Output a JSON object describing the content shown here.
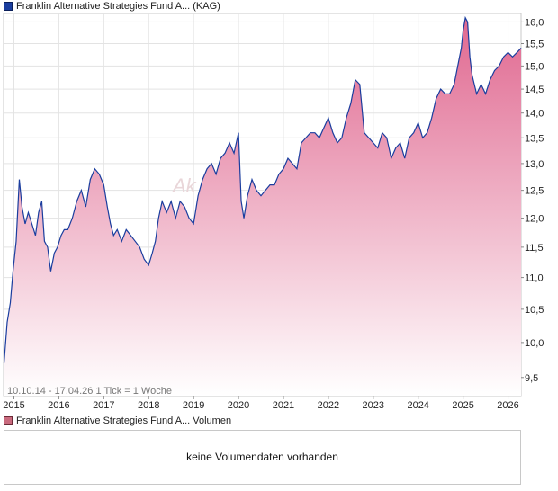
{
  "price_legend": {
    "name": "Franklin Alternative Strategies Fund A... (KAG)",
    "color": "#1a3d9e"
  },
  "volume_legend": {
    "name": "Franklin Alternative Strategies Fund A... Volumen",
    "color": "#c96a7e"
  },
  "range_label": "10.10.14 - 17.04.26   1 Tick = 1 Woche",
  "watermark": "Ak",
  "volume_message": "keine Volumendaten vorhanden",
  "chart_data": {
    "type": "area",
    "title": "",
    "xlabel": "",
    "ylabel": "",
    "x_ticks": [
      "2015",
      "2016",
      "2017",
      "2018",
      "2019",
      "2020",
      "2021",
      "2022",
      "2023",
      "2024",
      "2025",
      "2026"
    ],
    "y_ticks": [
      9.5,
      10.0,
      10.5,
      11.0,
      11.5,
      12.0,
      12.5,
      13.0,
      13.5,
      14.0,
      14.5,
      15.0,
      15.5,
      16.0
    ],
    "y_tick_labels": [
      "9,5",
      "10,0",
      "10,5",
      "11,0",
      "11,5",
      "12,0",
      "12,5",
      "13,0",
      "13,5",
      "14,0",
      "14,5",
      "15,0",
      "15,5",
      "16,0"
    ],
    "xlim": [
      2014.77,
      2026.29
    ],
    "ylim": [
      9.25,
      16.2
    ],
    "y_scale": "log",
    "grid": true,
    "line_color": "#1a3d9e",
    "fill_top_color": "#e06890",
    "fill_bottom_color": "#ffffff",
    "series": [
      {
        "x": [
          2014.78,
          2014.85,
          2014.92,
          2014.98,
          2015.05,
          2015.12,
          2015.18,
          2015.25,
          2015.32,
          2015.4,
          2015.48,
          2015.55,
          2015.62,
          2015.68,
          2015.75,
          2015.82,
          2015.9,
          2015.97,
          2016.05,
          2016.12,
          2016.2,
          2016.3,
          2016.4,
          2016.5,
          2016.6,
          2016.7,
          2016.8,
          2016.9,
          2017.0,
          2017.08,
          2017.15,
          2017.22,
          2017.3,
          2017.4,
          2017.5,
          2017.6,
          2017.7,
          2017.8,
          2017.9,
          2018.0,
          2018.08,
          2018.15,
          2018.22,
          2018.3,
          2018.4,
          2018.5,
          2018.6,
          2018.7,
          2018.8,
          2018.9,
          2019.0,
          2019.1,
          2019.2,
          2019.3,
          2019.4,
          2019.5,
          2019.6,
          2019.7,
          2019.8,
          2019.9,
          2020.0,
          2020.06,
          2020.12,
          2020.2,
          2020.3,
          2020.4,
          2020.5,
          2020.6,
          2020.7,
          2020.8,
          2020.9,
          2021.0,
          2021.1,
          2021.2,
          2021.3,
          2021.4,
          2021.5,
          2021.6,
          2021.7,
          2021.8,
          2021.9,
          2022.0,
          2022.1,
          2022.2,
          2022.3,
          2022.4,
          2022.5,
          2022.6,
          2022.7,
          2022.8,
          2022.9,
          2023.0,
          2023.1,
          2023.2,
          2023.3,
          2023.4,
          2023.5,
          2023.6,
          2023.7,
          2023.8,
          2023.9,
          2024.0,
          2024.1,
          2024.2,
          2024.3,
          2024.4,
          2024.5,
          2024.6,
          2024.7,
          2024.8,
          2024.9,
          2024.96,
          2025.0,
          2025.05,
          2025.1,
          2025.15,
          2025.2,
          2025.3,
          2025.4,
          2025.5,
          2025.6,
          2025.7,
          2025.8,
          2025.9,
          2026.0,
          2026.1,
          2026.2,
          2026.29
        ],
        "values": [
          9.7,
          10.3,
          10.6,
          11.1,
          11.6,
          12.7,
          12.2,
          11.9,
          12.1,
          11.9,
          11.7,
          12.1,
          12.3,
          11.6,
          11.5,
          11.1,
          11.4,
          11.5,
          11.7,
          11.8,
          11.8,
          12.0,
          12.3,
          12.5,
          12.2,
          12.7,
          12.9,
          12.8,
          12.6,
          12.2,
          11.9,
          11.7,
          11.8,
          11.6,
          11.8,
          11.7,
          11.6,
          11.5,
          11.3,
          11.2,
          11.4,
          11.6,
          12.0,
          12.3,
          12.1,
          12.3,
          12.0,
          12.3,
          12.2,
          12.0,
          11.9,
          12.4,
          12.7,
          12.9,
          13.0,
          12.8,
          13.1,
          13.2,
          13.4,
          13.2,
          13.6,
          12.3,
          12.0,
          12.4,
          12.7,
          12.5,
          12.4,
          12.5,
          12.6,
          12.6,
          12.8,
          12.9,
          13.1,
          13.0,
          12.9,
          13.4,
          13.5,
          13.6,
          13.6,
          13.5,
          13.7,
          13.9,
          13.6,
          13.4,
          13.5,
          13.9,
          14.2,
          14.7,
          14.6,
          13.6,
          13.5,
          13.4,
          13.3,
          13.6,
          13.5,
          13.1,
          13.3,
          13.4,
          13.1,
          13.5,
          13.6,
          13.8,
          13.5,
          13.6,
          13.9,
          14.3,
          14.5,
          14.4,
          14.4,
          14.6,
          15.1,
          15.4,
          15.8,
          16.1,
          16.0,
          15.2,
          14.8,
          14.4,
          14.6,
          14.4,
          14.7,
          14.9,
          15.0,
          15.2,
          15.3,
          15.2,
          15.3,
          15.4
        ]
      }
    ]
  }
}
